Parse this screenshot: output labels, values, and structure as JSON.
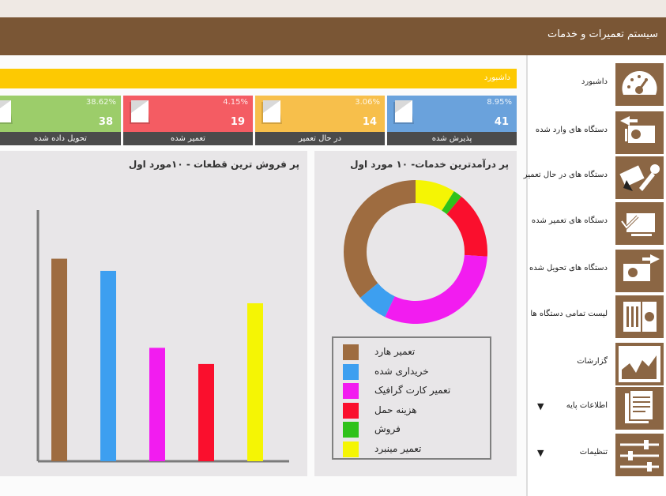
{
  "header": {
    "title": "سیستم تعمیرات و خدمات"
  },
  "dashboard_bar": {
    "label": "داشبورد"
  },
  "stats": [
    {
      "label": "پذیرش شده",
      "value": "41",
      "percent": "8.95%",
      "color": "#6aa2dc"
    },
    {
      "label": "در حال تعمیر",
      "value": "14",
      "percent": "3.06%",
      "color": "#f7bf4b"
    },
    {
      "label": "تعمیر شده",
      "value": "19",
      "percent": "4.15%",
      "color": "#f45c63"
    },
    {
      "label": "تحویل داده شده",
      "value": "38",
      "percent": "38.62%",
      "color": "#9ccd6a"
    }
  ],
  "donut_panel": {
    "title": "پر درآمدترین خدمات- ۱۰ مورد اول"
  },
  "bar_panel": {
    "title": "پر فروش ترین قطعات - ۱۰مورد اول"
  },
  "chart_data": [
    {
      "type": "pie",
      "title": "پر درآمدترین خدمات- ۱۰ مورد اول",
      "categories": [
        "تعمیر هارد",
        "خریداری شده",
        "تعمیر کارت گرافیک",
        "هزینه حمل",
        "فروش",
        "تعمیر مینبرد"
      ],
      "values": [
        36,
        7,
        31,
        15,
        2,
        9
      ],
      "colors": [
        "#9e6c40",
        "#3d9ff0",
        "#f21cf0",
        "#fa0f2d",
        "#2fc21a",
        "#f5f504"
      ],
      "legend": "bottom"
    },
    {
      "type": "bar",
      "title": "پر فروش ترین قطعات - ۱۰مورد اول",
      "categories": [
        "",
        "",
        "",
        "",
        ""
      ],
      "values": [
        100,
        94,
        56,
        48,
        78
      ],
      "colors": [
        "#9e6c40",
        "#3d9ff0",
        "#f21cf0",
        "#fa0f2d",
        "#f5f504"
      ],
      "ylim": [
        0,
        124
      ]
    }
  ],
  "sidebar": {
    "items": [
      {
        "label": "داشبورد",
        "icon": "speedometer-icon"
      },
      {
        "label": "دستگاه های وارد شده",
        "icon": "device-in-icon"
      },
      {
        "label": "دستگاه های در حال تعمیر",
        "icon": "repair-tools-icon"
      },
      {
        "label": "دستگاه های تعمیر شده",
        "icon": "device-checked-icon"
      },
      {
        "label": "دستگاه های تحویل شده",
        "icon": "device-out-icon"
      },
      {
        "label": "لیست تمامی دستگاه ها",
        "icon": "device-list-icon"
      },
      {
        "label": "گزارشات",
        "icon": "reports-chart-icon"
      },
      {
        "label": "اطلاعات پایه",
        "icon": "document-icon",
        "caret": "▼"
      },
      {
        "label": "تنظیمات",
        "icon": "sliders-icon",
        "caret": "▼"
      }
    ]
  }
}
